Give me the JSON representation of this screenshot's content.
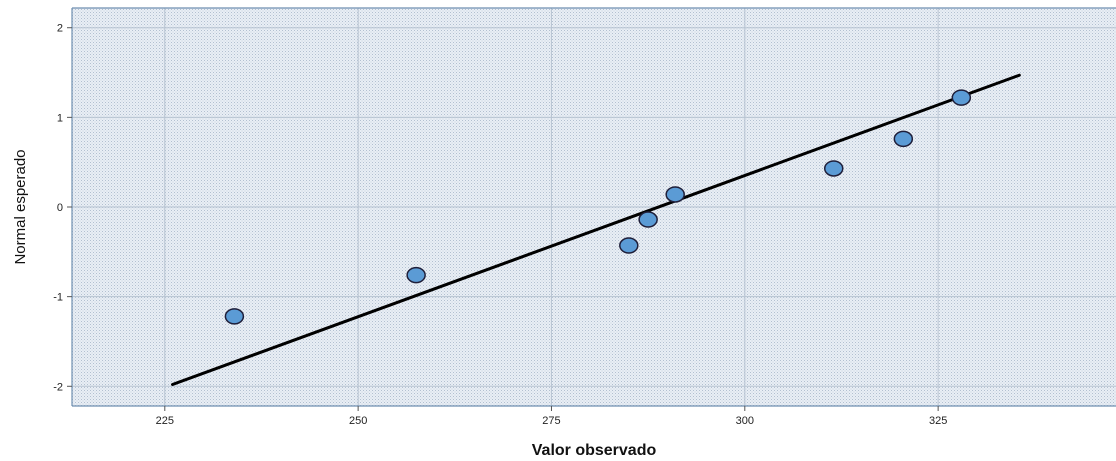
{
  "chart_data": {
    "type": "scatter",
    "title": "",
    "xlabel": "Valor observado",
    "ylabel": "Normal esperado",
    "xlim": [
      213,
      348
    ],
    "ylim": [
      -2.22,
      2.22
    ],
    "xticks": [
      225,
      250,
      275,
      300,
      325
    ],
    "xtick_labels": [
      "225",
      "250",
      "275",
      "300",
      "325"
    ],
    "yticks": [
      2,
      1,
      0,
      -1,
      -2
    ],
    "ytick_labels": [
      "2",
      "1",
      "0",
      "-1",
      "-2"
    ],
    "grid": true,
    "points": [
      {
        "x": 234,
        "y": -1.22
      },
      {
        "x": 257.5,
        "y": -0.76
      },
      {
        "x": 285,
        "y": -0.43
      },
      {
        "x": 287.5,
        "y": -0.14
      },
      {
        "x": 291,
        "y": 0.14
      },
      {
        "x": 311.5,
        "y": 0.43
      },
      {
        "x": 320.5,
        "y": 0.76
      },
      {
        "x": 328,
        "y": 1.22
      }
    ],
    "reference_line": {
      "x": [
        226,
        335.5
      ],
      "y": [
        -1.98,
        1.47
      ]
    },
    "colors": {
      "point_fill": "#5b9bd5",
      "point_stroke": "#1f1f3a",
      "line": "#000000",
      "plot_background": "#e8eef6",
      "grid": "#b8c4d2"
    }
  }
}
